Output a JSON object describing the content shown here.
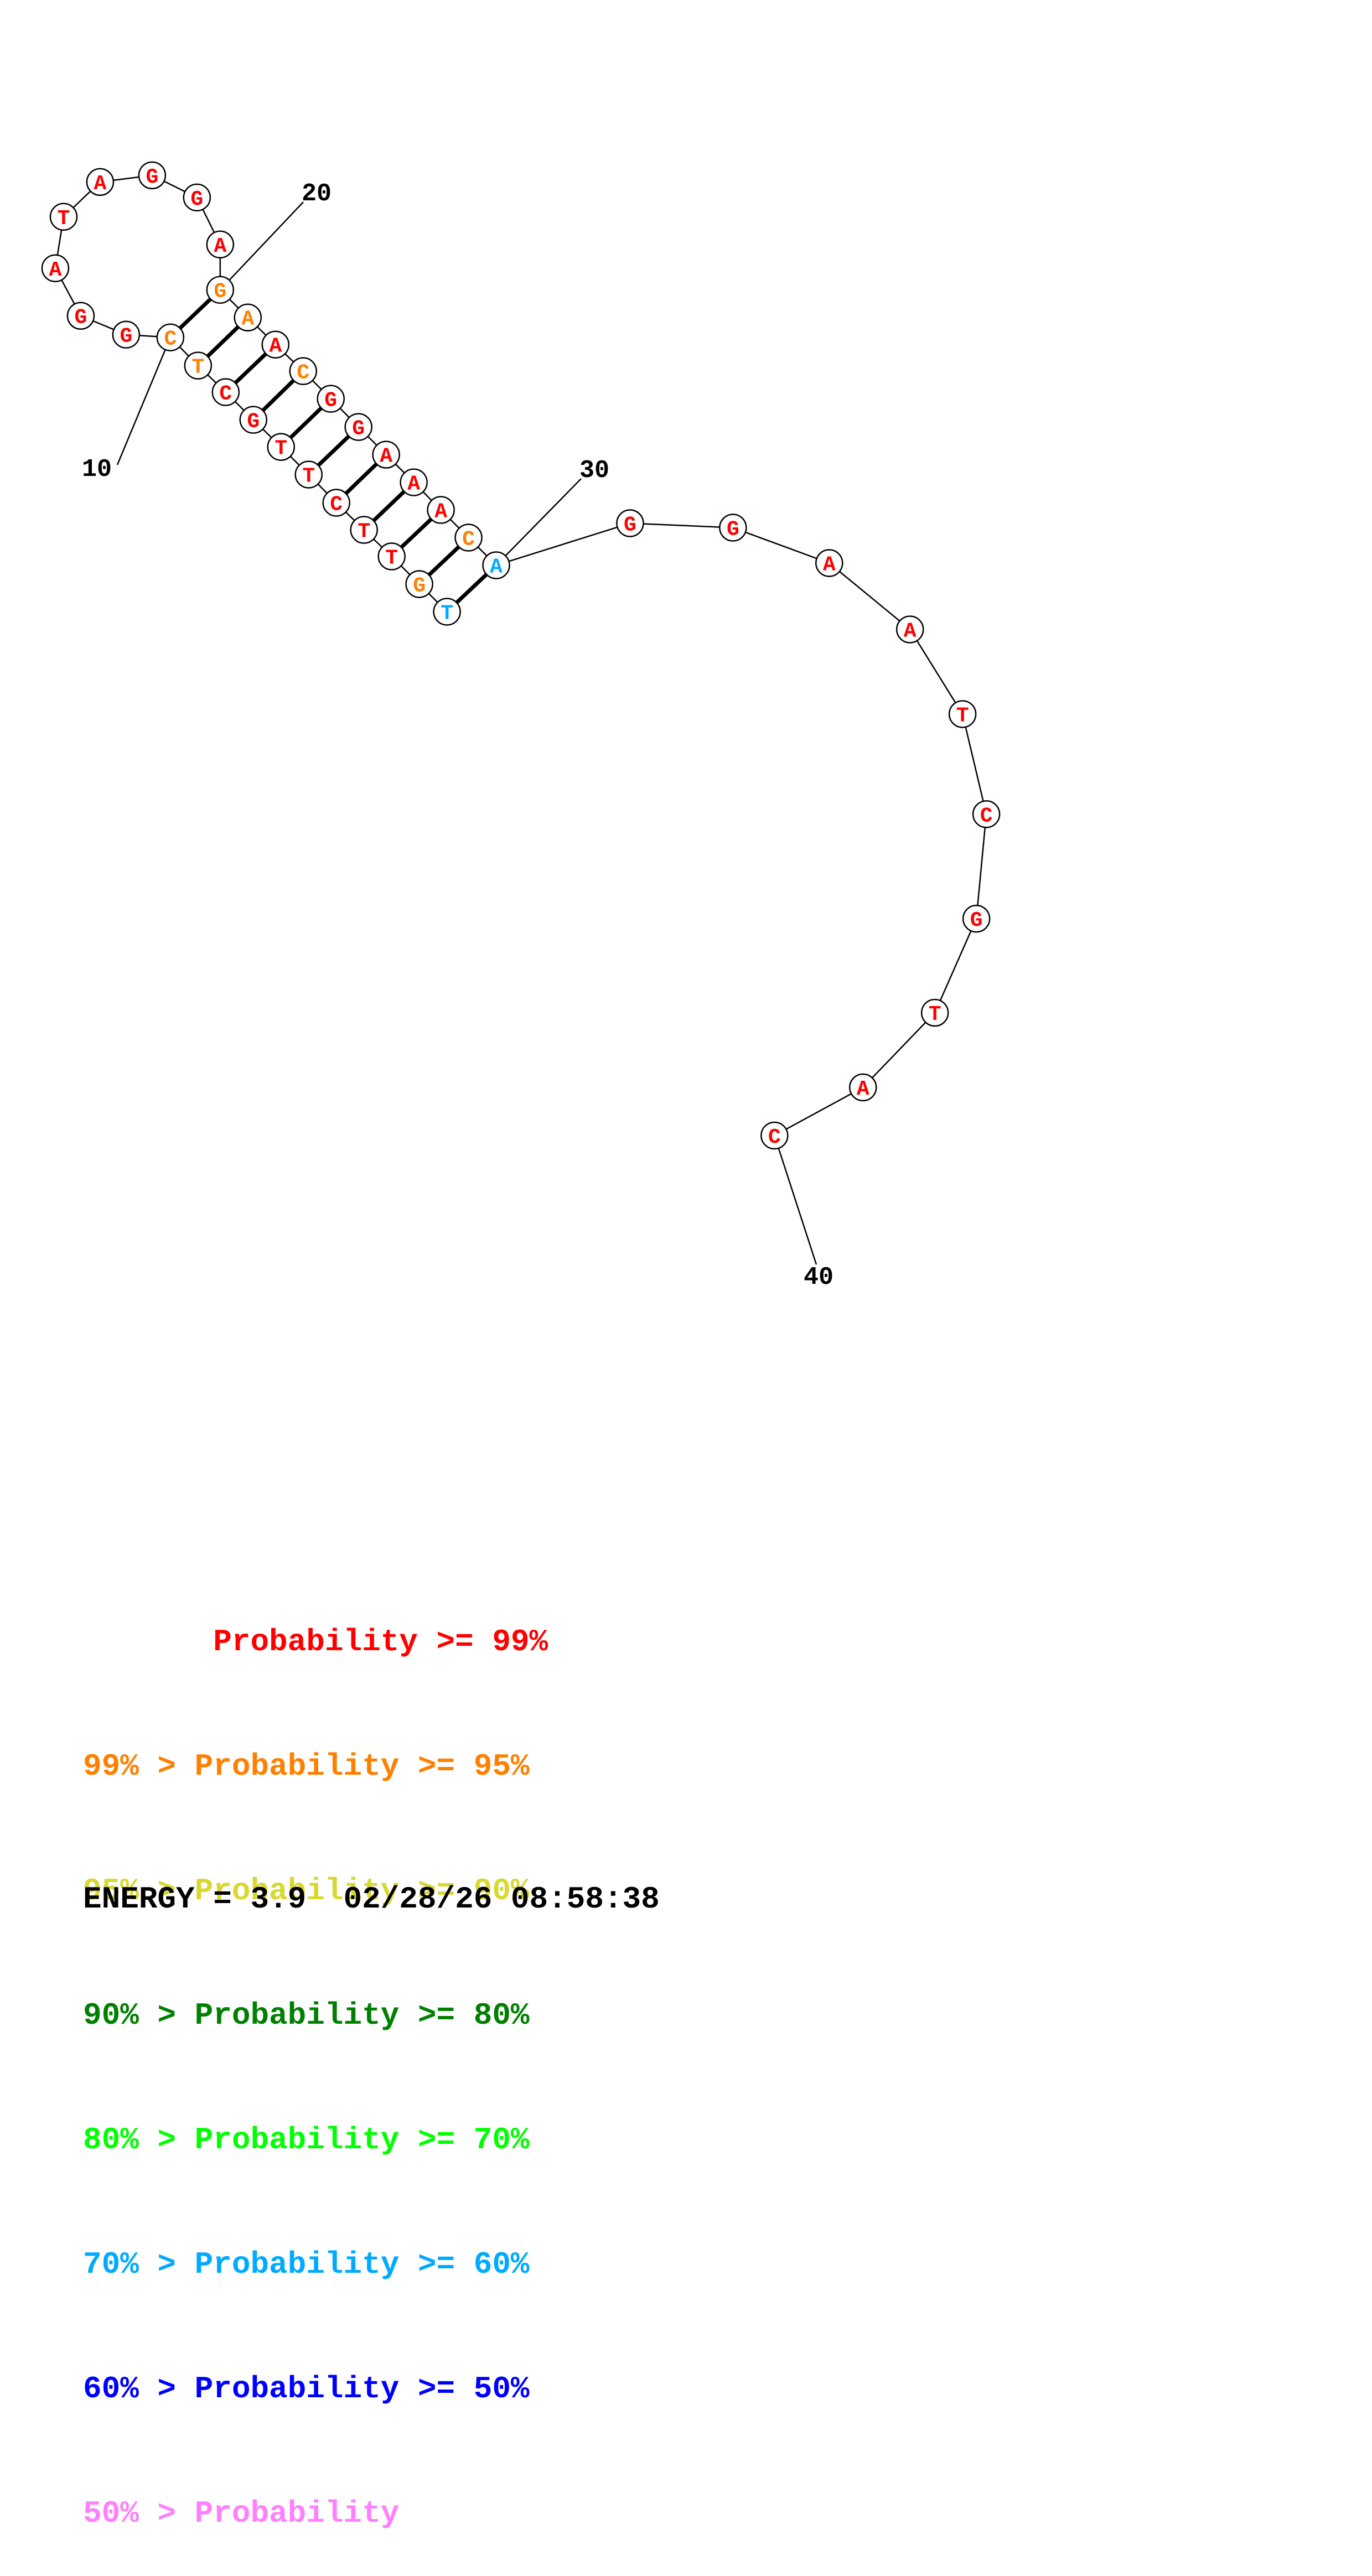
{
  "colors": {
    "p99": "#ff0000",
    "p95": "#ff8000",
    "p90": "#d8d830",
    "p80": "#008000",
    "p70": "#00ff00",
    "p60": "#00aaff",
    "p50": "#0000ff",
    "below50": "#ff80ff"
  },
  "structure": {
    "sequence": [
      "T",
      "G",
      "T",
      "T",
      "C",
      "T",
      "T",
      "G",
      "C",
      "T",
      "C",
      "G",
      "G",
      "A",
      "T",
      "A",
      "G",
      "G",
      "A",
      "G",
      "A",
      "A",
      "C",
      "G",
      "G",
      "A",
      "A",
      "A",
      "C",
      "A",
      "G",
      "G",
      "A",
      "A",
      "T",
      "C",
      "G",
      "T",
      "A",
      "C"
    ],
    "probability_class": [
      "p60",
      "p95",
      "p99",
      "p99",
      "p99",
      "p99",
      "p99",
      "p99",
      "p99",
      "p95",
      "p95",
      "p99",
      "p99",
      "p99",
      "p99",
      "p99",
      "p99",
      "p99",
      "p99",
      "p95",
      "p95",
      "p99",
      "p95",
      "p99",
      "p99",
      "p99",
      "p99",
      "p99",
      "p95",
      "p60",
      "p99",
      "p99",
      "p99",
      "p99",
      "p99",
      "p99",
      "p99",
      "p99",
      "p99",
      "p99"
    ],
    "pairs": [
      [
        1,
        30
      ],
      [
        2,
        29
      ],
      [
        3,
        28
      ],
      [
        4,
        27
      ],
      [
        5,
        26
      ],
      [
        6,
        25
      ],
      [
        7,
        24
      ],
      [
        8,
        23
      ],
      [
        9,
        22
      ],
      [
        10,
        21
      ],
      [
        11,
        20
      ]
    ],
    "tick_labels": [
      "10",
      "20",
      "30",
      "40"
    ]
  },
  "legend": [
    {
      "text": "       Probability >= 99%",
      "color_key": "p99"
    },
    {
      "text": "99% > Probability >= 95%",
      "color_key": "p95"
    },
    {
      "text": "95% > Probability >= 90%",
      "color_key": "p90"
    },
    {
      "text": "90% > Probability >= 80%",
      "color_key": "p80"
    },
    {
      "text": "80% > Probability >= 70%",
      "color_key": "p70"
    },
    {
      "text": "70% > Probability >= 60%",
      "color_key": "p60"
    },
    {
      "text": "60% > Probability >= 50%",
      "color_key": "p50"
    },
    {
      "text": "50% > Probability",
      "color_key": "below50"
    }
  ],
  "energy_line": "ENERGY = 3.9  02/28/26 08:58:38"
}
